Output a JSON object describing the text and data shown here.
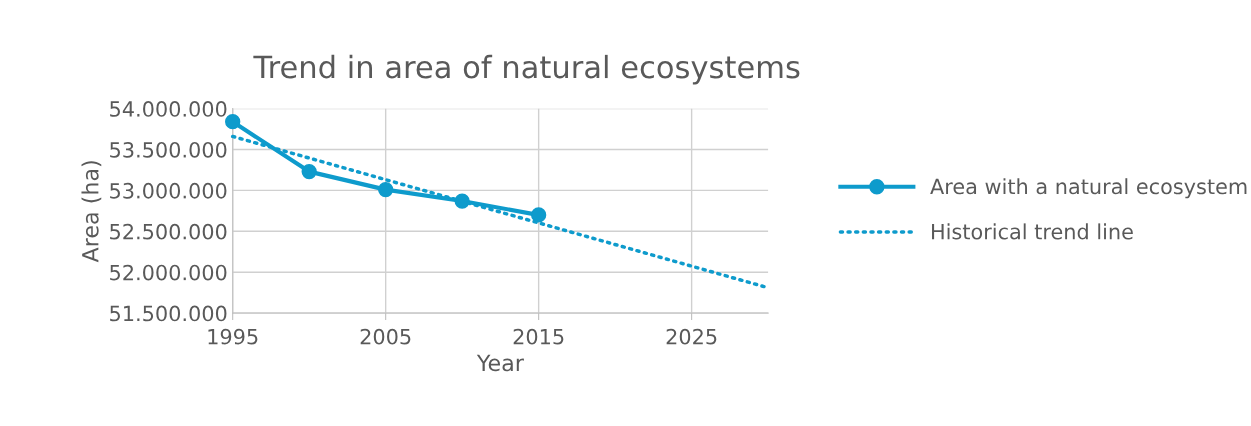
{
  "chart_data": {
    "type": "line",
    "title": "Trend in area of natural ecosystems",
    "xlabel": "Year",
    "ylabel": "Area (ha)",
    "x": [
      1995,
      2000,
      2005,
      2010,
      2015
    ],
    "series": [
      {
        "name": "Area with a natural ecosystem",
        "color": "#0e9bcc",
        "values": [
          53840000,
          53230000,
          53010000,
          52870000,
          52700000
        ],
        "marker": "circle",
        "line_style": "solid"
      },
      {
        "name": "Historical trend line",
        "color": "#0e9bcc",
        "type": "line",
        "x": [
          1995,
          2030
        ],
        "values": [
          53660000,
          51810000
        ],
        "marker": "none",
        "line_style": "dotted"
      }
    ],
    "xlim": [
      1995,
      2030
    ],
    "xticks": [
      1995,
      2005,
      2015,
      2025
    ],
    "ylim": [
      51500000,
      54000000
    ],
    "yticks": [
      {
        "value": 51500000,
        "label": "51.500.000"
      },
      {
        "value": 52000000,
        "label": "52.000.000"
      },
      {
        "value": 52500000,
        "label": "52.500.000"
      },
      {
        "value": 53000000,
        "label": "53.000.000"
      },
      {
        "value": 53500000,
        "label": "53.500.000"
      },
      {
        "value": 54000000,
        "label": "54.000.000"
      }
    ],
    "grid": true,
    "legend": "right"
  }
}
